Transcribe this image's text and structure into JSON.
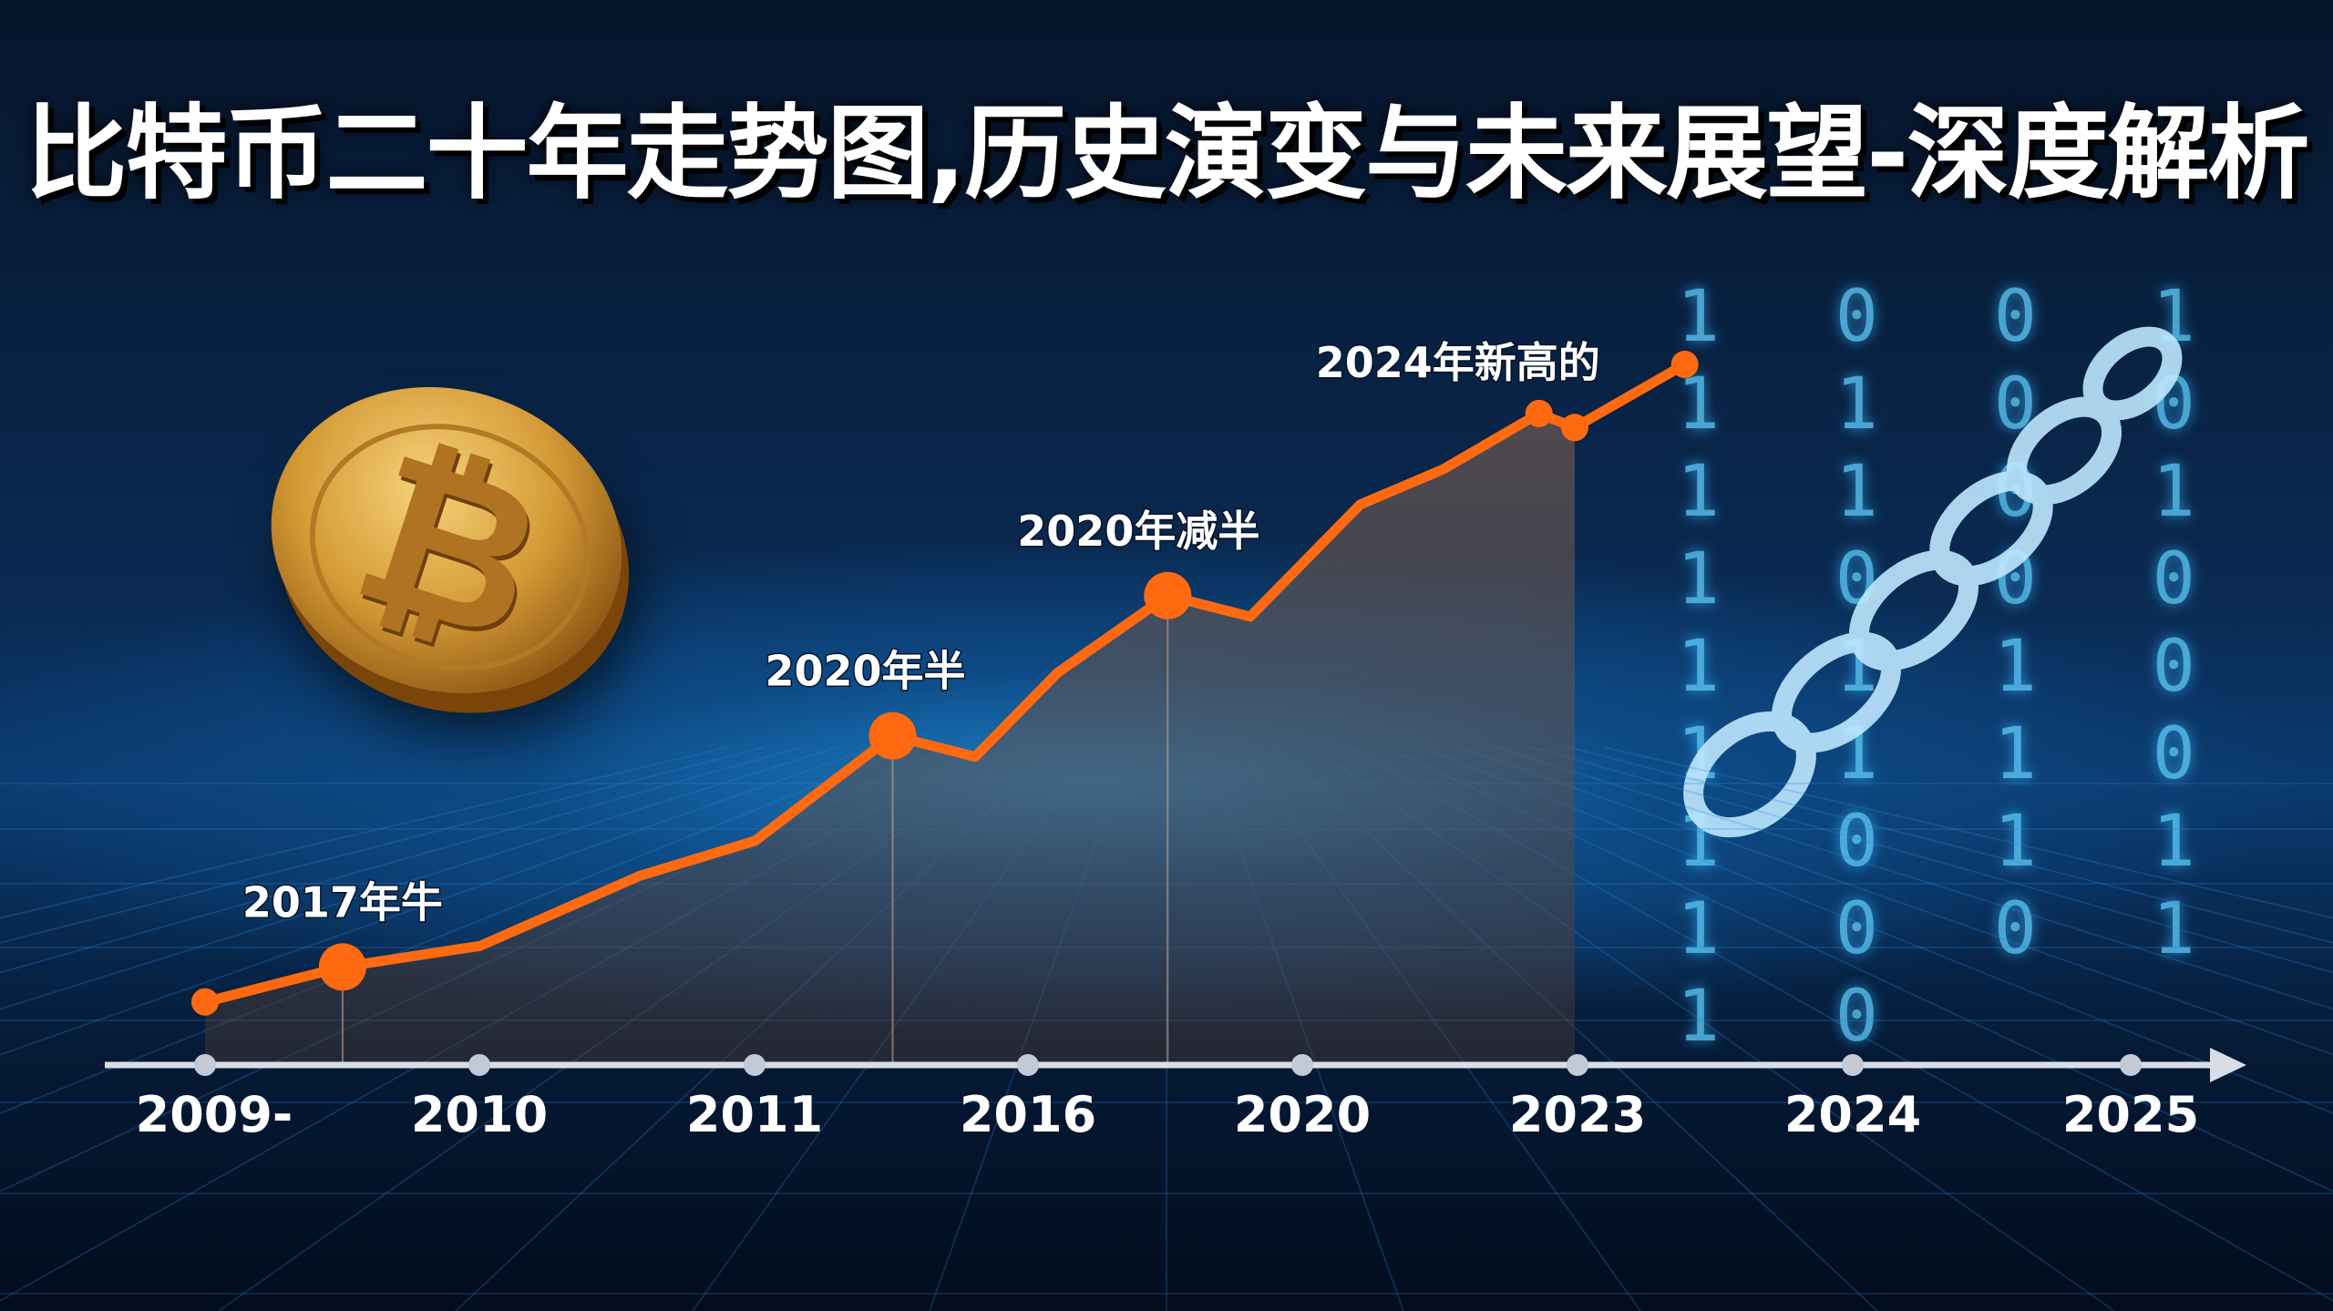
{
  "title": "比特币二十年走势图,历史演变与未来展望-深度解析",
  "decor": {
    "binary_digits": "1 0 0 1 1 1 0 0 1 1 0 1 1 0 0 0 1 1 1 0 1 1 1 0 1 0 1 1 1 0 0 1 1 0",
    "coin_symbol": "₿"
  },
  "colors": {
    "line": "#ff6a10",
    "axis": "#d8dde6",
    "text": "#ffffff"
  },
  "chart_data": {
    "type": "line",
    "title": "比特币二十年走势图,历史演变与未来展望-深度解析",
    "xlabel": "",
    "ylabel": "",
    "x_tick_labels": [
      "2009-",
      "2010",
      "2011",
      "2016",
      "2020",
      "2023",
      "2024",
      "2025"
    ],
    "y_axis": "none (relative level, unlabeled)",
    "ylim": [
      0,
      100
    ],
    "grid": false,
    "area_fill": true,
    "series": [
      {
        "x": [
          0,
          0.5,
          1,
          1.58,
          2,
          2.5,
          2.8,
          3.1,
          3.5,
          3.8,
          4.2,
          4.5,
          4.85,
          4.98,
          5.38
        ],
        "values": [
          9,
          14,
          17,
          27,
          32,
          47,
          44,
          56,
          67,
          64,
          80,
          85,
          93,
          91,
          100
        ]
      }
    ],
    "annotations": [
      {
        "text": "2017年牛",
        "point_index": 1
      },
      {
        "text": "2020年半",
        "point_index": 5
      },
      {
        "text": "2020年减半",
        "point_index": 8
      },
      {
        "text": "2024年新高的",
        "point_index": 12
      }
    ],
    "large_markers": [
      1,
      5,
      8
    ],
    "small_markers": [
      0,
      12,
      13,
      14
    ]
  }
}
